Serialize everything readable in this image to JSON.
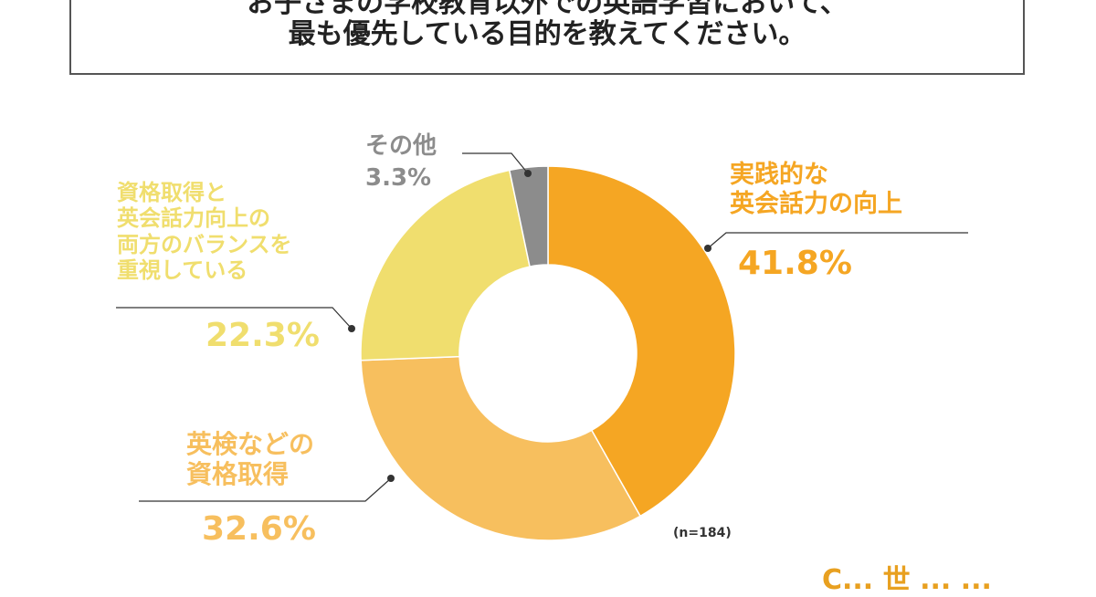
{
  "title": {
    "line1": "お子さまの学校教育以外での英語学習において、",
    "line2": "最も優先している目的を教えてください。"
  },
  "chart_data": {
    "type": "pie",
    "subtype": "donut",
    "start_angle_deg": 0,
    "direction": "clockwise",
    "slices": [
      {
        "label_lines": [
          "実践的な",
          "英会話力の向上"
        ],
        "value": 41.8,
        "value_label": "41.8%",
        "color": "#f5a623"
      },
      {
        "label_lines": [
          "英検などの",
          "資格取得"
        ],
        "value": 32.6,
        "value_label": "32.6%",
        "color": "#f7bf5e"
      },
      {
        "label_lines": [
          "資格取得と",
          "英会話力向上の",
          "両方のバランスを",
          "重視している"
        ],
        "value": 22.3,
        "value_label": "22.3%",
        "color": "#f0de6e"
      },
      {
        "label_lines": [
          "その他"
        ],
        "value": 3.3,
        "value_label": "3.3%",
        "color": "#8c8c8c"
      }
    ],
    "note": "(n=184)"
  },
  "footer": {
    "brand": "C... 世 ... ..."
  }
}
